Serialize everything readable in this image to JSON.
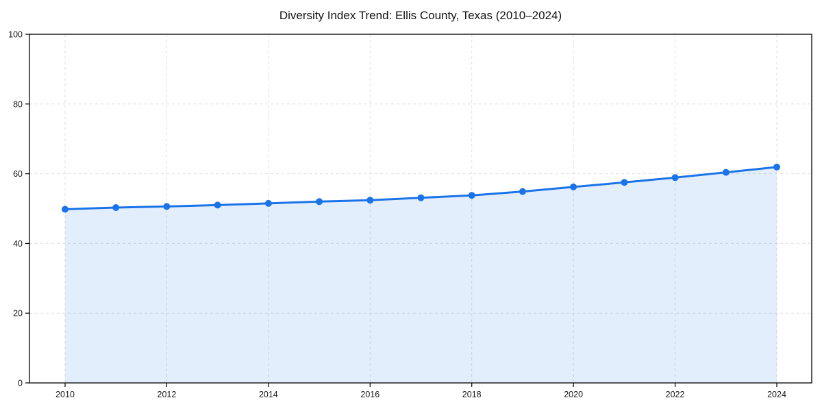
{
  "page": {
    "background_color": "#ffffff"
  },
  "chart_data": {
    "type": "line",
    "title": "Diversity Index Trend: Ellis County, Texas (2010–2024)",
    "xlabel": "",
    "ylabel": "",
    "x": [
      2010,
      2011,
      2012,
      2013,
      2014,
      2015,
      2016,
      2017,
      2018,
      2019,
      2020,
      2021,
      2022,
      2023,
      2024
    ],
    "series": [
      {
        "name": "Diversity Index",
        "values": [
          49.8,
          50.3,
          50.6,
          51.0,
          51.5,
          52.0,
          52.4,
          53.1,
          53.8,
          54.9,
          56.2,
          57.5,
          58.9,
          60.4,
          61.9
        ]
      }
    ],
    "ylim": [
      0,
      100
    ],
    "yticks": [
      0,
      20,
      40,
      60,
      80,
      100
    ],
    "xticks": [
      2010,
      2012,
      2014,
      2016,
      2018,
      2020,
      2022,
      2024
    ],
    "grid": true,
    "grid_linestyle": "dashed",
    "legend": "none",
    "area_fill": true,
    "marker": "circle",
    "colors": {
      "line": "#1a73e8",
      "marker": "#1a73e8",
      "area_fill": "#1a73e8",
      "area_fill_opacity": 0.12,
      "gridline": "#dedede",
      "spine": "#000000",
      "tick_label": "#1a1a1a",
      "title": "#111111",
      "background": "#ffffff"
    }
  }
}
